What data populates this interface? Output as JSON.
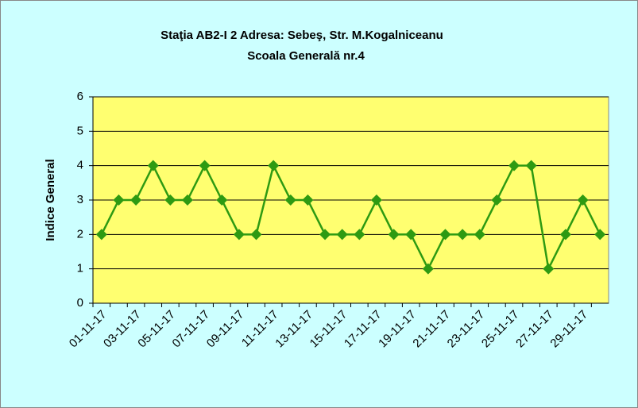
{
  "chart_data": {
    "type": "line",
    "title": "Staţia AB2-I 2  Adresa: Sebeş,  Str. M.Kogalniceanu",
    "subtitle": "Scoala Generală nr.4",
    "y_label": "Indice General",
    "categories": [
      "01-11-17",
      null,
      "03-11-17",
      null,
      "05-11-17",
      null,
      "07-11-17",
      null,
      "09-11-17",
      null,
      "11-11-17",
      null,
      "13-11-17",
      null,
      "15-11-17",
      null,
      "17-11-17",
      null,
      "19-11-17",
      null,
      "21-11-17",
      null,
      "23-11-17",
      null,
      "25-11-17",
      null,
      "27-11-17",
      null,
      "29-11-17",
      null
    ],
    "series": [
      {
        "color": "#2e9a12",
        "values": [
          2,
          3,
          3,
          4,
          3,
          3,
          4,
          3,
          2,
          2,
          4,
          3,
          3,
          2,
          2,
          2,
          3,
          2,
          2,
          1,
          2,
          2,
          2,
          3,
          4,
          4,
          1,
          2,
          3,
          2
        ]
      }
    ],
    "ylim": [
      0,
      6
    ],
    "yticks": [
      0,
      1,
      2,
      3,
      4,
      5,
      6
    ],
    "grid": true
  }
}
